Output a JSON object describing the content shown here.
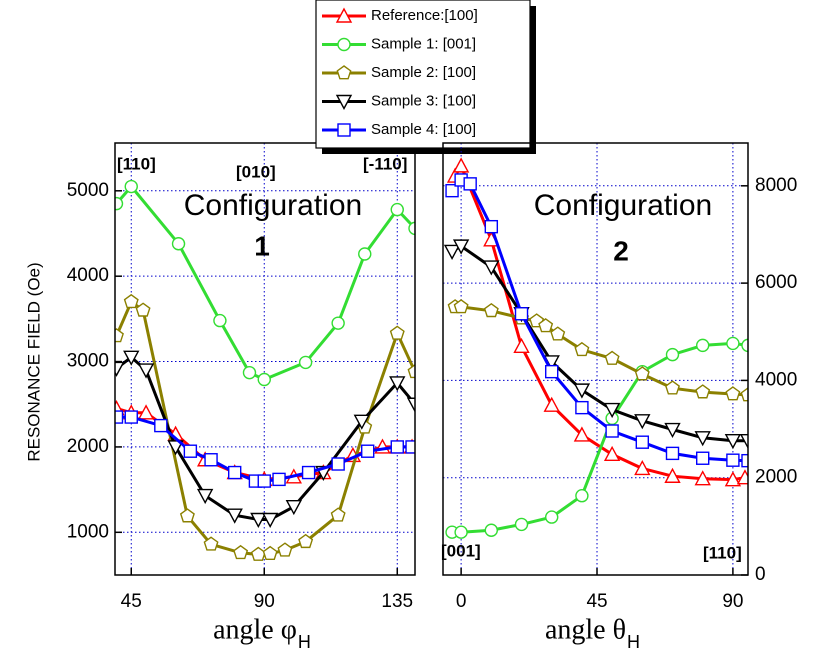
{
  "chart_data": [
    {
      "type": "line",
      "xlabel": "angle φ",
      "xlabel_sub": "H",
      "ylabel": "RESONANCE FIELD (Oe)",
      "xlim": [
        39.5,
        141
      ],
      "ylim": [
        500,
        5560
      ],
      "xticks": [
        45,
        90,
        135
      ],
      "yticks": [
        1000,
        2000,
        3000,
        4000,
        5000
      ],
      "grid": true,
      "yaxis_position": "left",
      "legend": "top",
      "annotations": [
        "[110]",
        "[010]",
        "[-110]",
        "Configuration",
        "1"
      ],
      "series": [
        {
          "name": "Reference:[100]",
          "color": "#ff0000",
          "marker": "triangle-up",
          "x": [
            40,
            45,
            50,
            60,
            70,
            80,
            90,
            100,
            110,
            120,
            130,
            135,
            140
          ],
          "values": [
            2450,
            2400,
            2400,
            2150,
            1850,
            1700,
            1620,
            1650,
            1700,
            1900,
            2000,
            2000,
            2000
          ]
        },
        {
          "name": "Sample 1: [001]",
          "color": "#33dd33",
          "marker": "circle",
          "x": [
            40,
            45,
            61,
            75,
            85,
            90,
            104,
            115,
            124,
            135,
            141
          ],
          "values": [
            4850,
            5050,
            4380,
            3480,
            2870,
            2790,
            2990,
            3450,
            4260,
            4780,
            4560
          ]
        },
        {
          "name": "Sample 2: [100]",
          "color": "#8b8000",
          "marker": "pentagon",
          "x": [
            40,
            45,
            49,
            64,
            72,
            82,
            88,
            92,
            97,
            104,
            115,
            124,
            135,
            141
          ],
          "values": [
            3300,
            3700,
            3600,
            1190,
            860,
            760,
            740,
            750,
            790,
            890,
            1200,
            2230,
            3330,
            2880
          ]
        },
        {
          "name": "Sample 3: [100]",
          "color": "#000000",
          "marker": "triangle-down",
          "x": [
            40,
            45,
            50,
            60,
            70,
            80,
            88,
            92,
            100,
            110,
            123,
            135,
            141
          ],
          "values": [
            2920,
            3050,
            2900,
            2000,
            1430,
            1200,
            1150,
            1150,
            1300,
            1700,
            2300,
            2750,
            2500
          ]
        },
        {
          "name": "Sample 4: [100]",
          "color": "#0000ff",
          "marker": "square",
          "x": [
            40,
            45,
            55,
            65,
            72,
            80,
            87,
            90,
            95,
            105,
            115,
            125,
            135,
            140
          ],
          "values": [
            2350,
            2350,
            2250,
            1950,
            1850,
            1700,
            1600,
            1600,
            1620,
            1700,
            1800,
            1950,
            2000,
            2000
          ]
        }
      ]
    },
    {
      "type": "line",
      "xlabel": "angle θ",
      "xlabel_sub": "H",
      "xlim": [
        -6,
        95
      ],
      "ylim": [
        0,
        8880
      ],
      "xticks": [
        0,
        45,
        90
      ],
      "yticks": [
        0,
        2000,
        4000,
        6000,
        8000
      ],
      "grid": true,
      "yaxis_position": "right",
      "annotations": [
        "[001]",
        "[110]",
        "Configuration",
        "2"
      ],
      "series": [
        {
          "color": "#ff0000",
          "marker": "triangle-up",
          "x": [
            -2,
            0,
            10,
            20,
            30,
            40,
            50,
            60,
            70,
            80,
            90,
            94
          ],
          "values": [
            8200,
            8410,
            6890,
            4700,
            3490,
            2880,
            2480,
            2190,
            2030,
            1980,
            1960,
            2000
          ]
        },
        {
          "color": "#33dd33",
          "marker": "circle",
          "x": [
            -3,
            0,
            10,
            20,
            30,
            40,
            50,
            60,
            70,
            80,
            90,
            95
          ],
          "values": [
            880,
            880,
            920,
            1040,
            1190,
            1630,
            3220,
            4180,
            4530,
            4720,
            4760,
            4720
          ]
        },
        {
          "color": "#8b8000",
          "marker": "pentagon",
          "x": [
            -2,
            0,
            10,
            20,
            25,
            28,
            32,
            40,
            50,
            60,
            70,
            80,
            90,
            95
          ],
          "values": [
            5510,
            5510,
            5430,
            5280,
            5220,
            5120,
            4950,
            4630,
            4450,
            4130,
            3840,
            3760,
            3720,
            3700
          ]
        },
        {
          "color": "#000000",
          "marker": "triangle-down",
          "x": [
            -3,
            0,
            10,
            20,
            30,
            40,
            50,
            60,
            70,
            80,
            90,
            95
          ],
          "values": [
            6650,
            6760,
            6330,
            5370,
            4380,
            3800,
            3400,
            3170,
            2990,
            2820,
            2760,
            2760
          ]
        },
        {
          "color": "#0000ff",
          "marker": "square",
          "x": [
            -3,
            0,
            3,
            10,
            20,
            30,
            40,
            50,
            60,
            70,
            80,
            90,
            95
          ],
          "values": [
            7900,
            8120,
            8040,
            7160,
            5370,
            4180,
            3440,
            2960,
            2730,
            2500,
            2400,
            2360,
            2350
          ]
        }
      ]
    }
  ]
}
